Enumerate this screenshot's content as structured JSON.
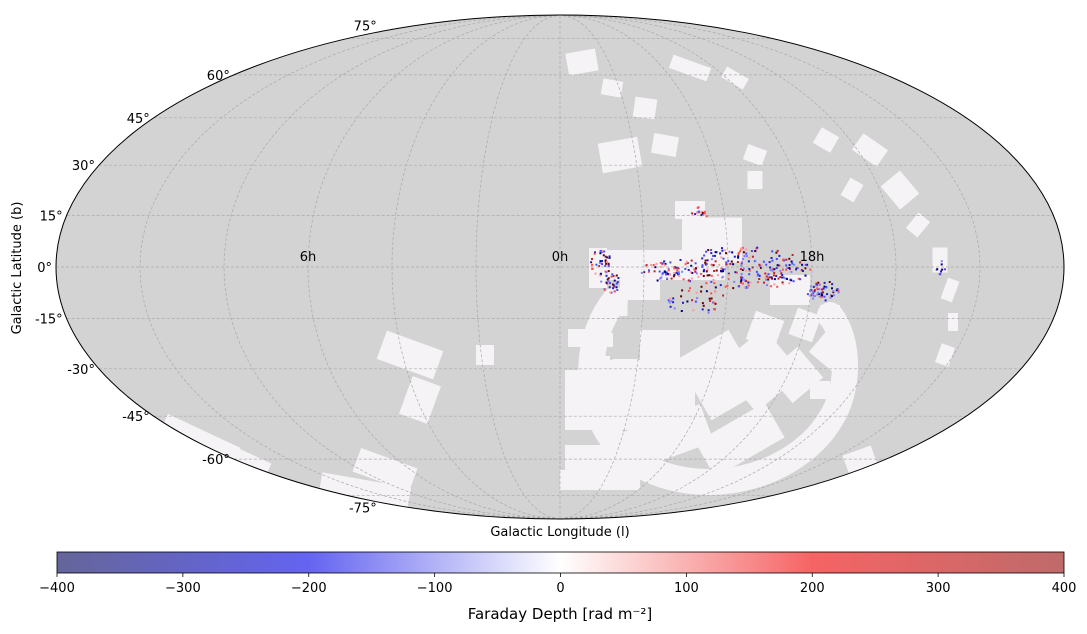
{
  "chart_data": {
    "type": "heatmap",
    "projection": "mollweide",
    "xlabel": "Galactic Longitude (l)",
    "ylabel": "Galactic Latitude (b)",
    "lat_tick_labels": [
      {
        "lat": 75,
        "label": "75°"
      },
      {
        "lat": 60,
        "label": "60°"
      },
      {
        "lat": 45,
        "label": "45°"
      },
      {
        "lat": 30,
        "label": "30°"
      },
      {
        "lat": 15,
        "label": "15°"
      },
      {
        "lat": 0,
        "label": "0°"
      },
      {
        "lat": -15,
        "label": "-15°"
      },
      {
        "lat": -30,
        "label": "-30°"
      },
      {
        "lat": -45,
        "label": "-45°"
      },
      {
        "lat": -60,
        "label": "-60°"
      },
      {
        "lat": -75,
        "label": "-75°"
      }
    ],
    "lon_tick_labels": [
      {
        "lon": 90,
        "label": "6h"
      },
      {
        "lon": 0,
        "label": "0h"
      },
      {
        "lon": -90,
        "label": "18h"
      }
    ],
    "grid": true,
    "background_color": "#d3d3d3",
    "survey_color": "#f6f3f6",
    "colorbar": {
      "label": "Faraday Depth [rad m⁻²]",
      "range": [
        -400,
        400
      ],
      "ticks": [
        -400,
        -300,
        -200,
        -100,
        0,
        100,
        200,
        300,
        400
      ],
      "tick_labels": [
        "−400",
        "−300",
        "−200",
        "−100",
        "0",
        "100",
        "200",
        "300",
        "400"
      ],
      "colors": [
        "#65659a",
        "#6464f0",
        "#ffffff",
        "#f56464",
        "#bf6a6a"
      ],
      "placement": "bottom"
    }
  }
}
